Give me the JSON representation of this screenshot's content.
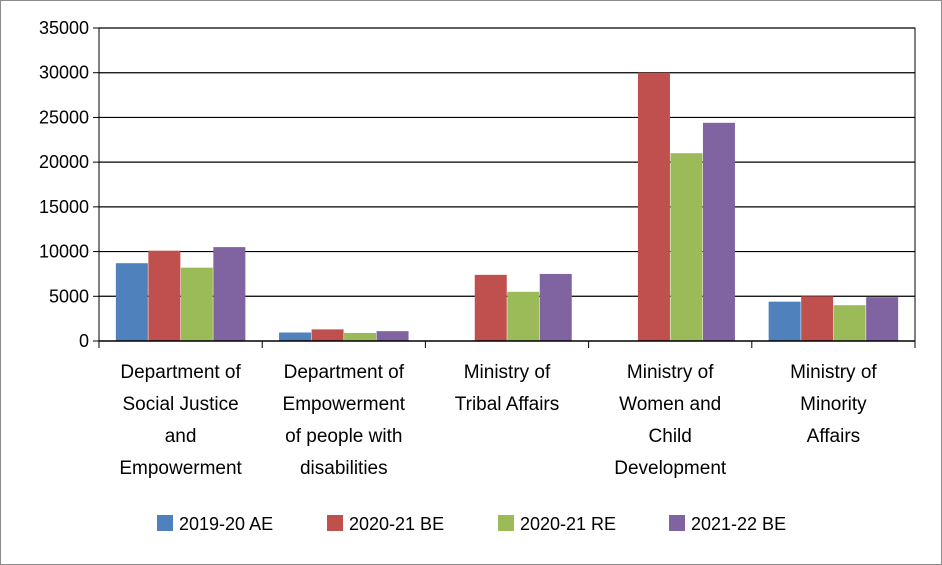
{
  "chart_data": {
    "type": "bar",
    "categories": [
      [
        "Department of",
        "Social Justice",
        "and",
        "Empowerment"
      ],
      [
        "Department of",
        "Empowerment",
        "of people with",
        "disabilities"
      ],
      [
        "Ministry of",
        "Tribal Affairs"
      ],
      [
        "Ministry of",
        "Women and",
        "Child",
        "Development"
      ],
      [
        "Ministry of",
        "Minority",
        "Affairs"
      ]
    ],
    "series": [
      {
        "name": "2019-20 AE",
        "color": "#4f81bd",
        "values": [
          8700,
          950,
          0,
          0,
          4400
        ]
      },
      {
        "name": "2020-21 BE",
        "color": "#c0504d",
        "values": [
          10100,
          1300,
          7400,
          30000,
          5000
        ]
      },
      {
        "name": "2020-21 RE",
        "color": "#9bbb59",
        "values": [
          8200,
          900,
          5500,
          21000,
          4000
        ]
      },
      {
        "name": "2021-22 BE",
        "color": "#8064a2",
        "values": [
          10500,
          1100,
          7500,
          24400,
          4900
        ]
      }
    ],
    "ylim": [
      0,
      35000
    ],
    "yticks": [
      "0",
      "5000",
      "10000",
      "15000",
      "20000",
      "25000",
      "30000",
      "35000"
    ],
    "grid": true,
    "legend_position": "bottom"
  }
}
